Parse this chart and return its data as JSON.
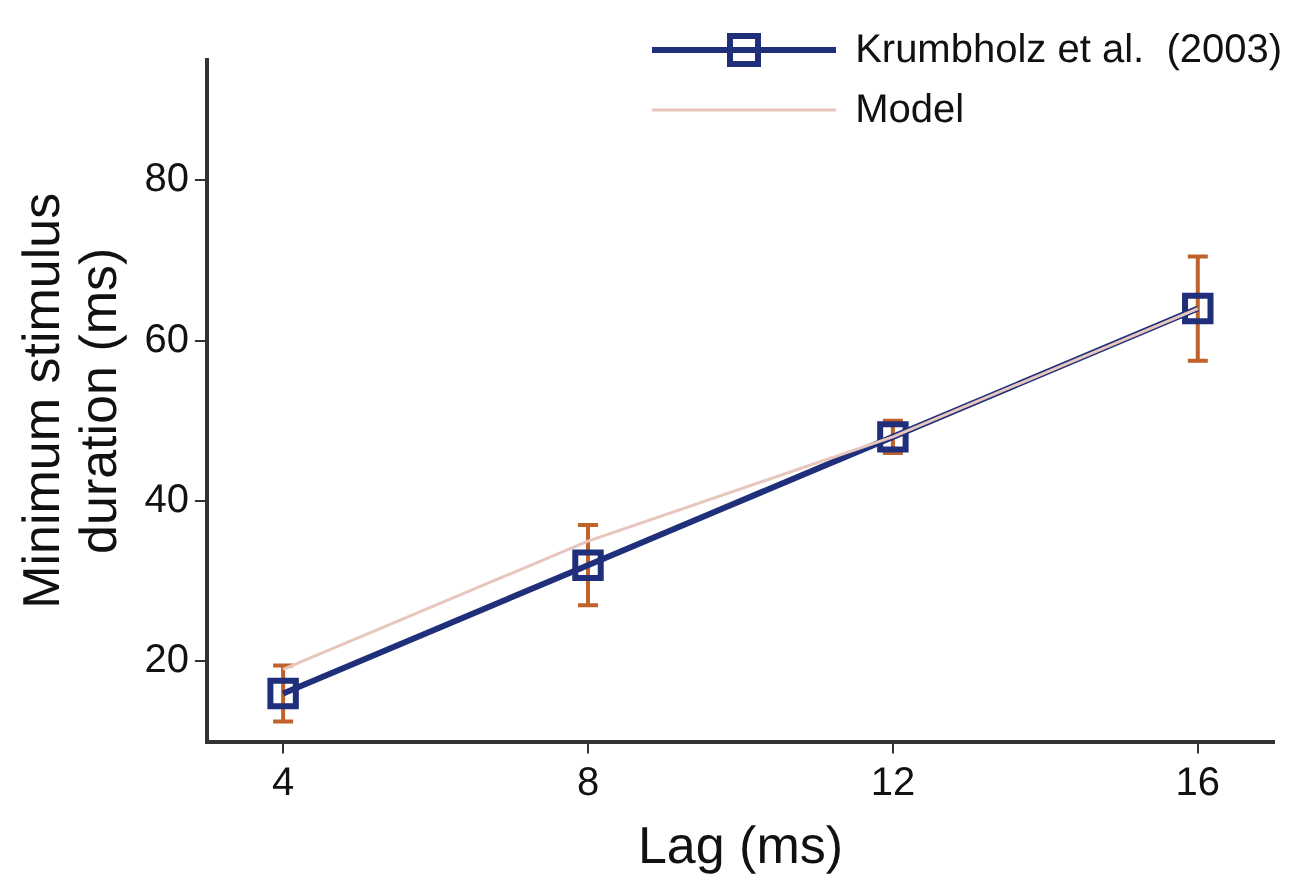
{
  "chart_data": {
    "type": "line",
    "xlabel": "Lag (ms)",
    "ylabel": "Minimum stimulus duration (ms)",
    "x": [
      4,
      8,
      12,
      16
    ],
    "xlim": [
      3,
      17
    ],
    "xticks": [
      4,
      8,
      12,
      16
    ],
    "ylim": [
      10,
      95
    ],
    "yticks": [
      20,
      40,
      60,
      80
    ],
    "grid": false,
    "legend": "top right",
    "series": [
      {
        "name": "Krumbholz et al.  (2003)",
        "color": "#1f2f7a",
        "values": [
          16,
          32,
          48,
          64
        ],
        "marker": "square",
        "errors": [
          3.5,
          5,
          2,
          6.5
        ]
      },
      {
        "name": "Model",
        "color": "#e6c6bd",
        "values": [
          19,
          35,
          48,
          64
        ],
        "marker": "none"
      }
    ]
  }
}
